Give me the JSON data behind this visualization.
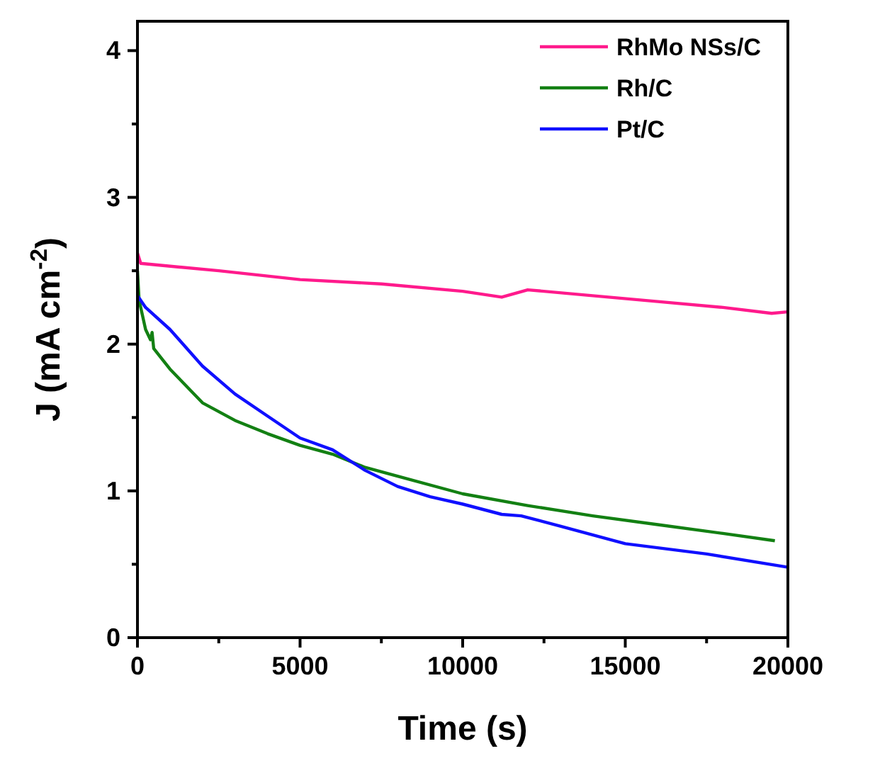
{
  "chart_data": {
    "type": "line",
    "xlabel": "Time (s)",
    "ylabel": "J (mA cm$^{-2}$)",
    "xlim": [
      0,
      20000
    ],
    "ylim": [
      0,
      4.2
    ],
    "xticks": [
      0,
      {
        "value": 2500,
        "label": null
      },
      5000,
      {
        "value": 7500,
        "label": null
      },
      10000,
      {
        "value": 12500,
        "label": null
      },
      15000,
      {
        "value": 17500,
        "label": null
      },
      20000
    ],
    "yticks": [
      0,
      {
        "value": 0.5,
        "label": null
      },
      1,
      {
        "value": 1.5,
        "label": null
      },
      2,
      {
        "value": 2.5,
        "label": null
      },
      3,
      {
        "value": 3.5,
        "label": null
      },
      4
    ],
    "grid": false,
    "legend": "top right",
    "marker": "none",
    "line_style": "solid",
    "series": [
      {
        "name": "RhMo NSs/C",
        "color": "#ff1a8c",
        "x": [
          0,
          100,
          2500,
          5000,
          7500,
          10000,
          11200,
          12000,
          14000,
          16000,
          18000,
          19500,
          20000
        ],
        "values": [
          2.62,
          2.55,
          2.5,
          2.44,
          2.41,
          2.36,
          2.32,
          2.37,
          2.33,
          2.29,
          2.25,
          2.21,
          2.22
        ]
      },
      {
        "name": "Rh/C",
        "color": "#138013",
        "x": [
          0,
          50,
          250,
          400,
          450,
          500,
          1000,
          2000,
          3000,
          4000,
          5000,
          6000,
          7000,
          8000,
          10000,
          12000,
          14000,
          16000,
          18000,
          19600
        ],
        "values": [
          2.5,
          2.3,
          2.1,
          2.03,
          2.08,
          1.97,
          1.83,
          1.6,
          1.48,
          1.39,
          1.31,
          1.25,
          1.16,
          1.1,
          0.98,
          0.9,
          0.83,
          0.77,
          0.71,
          0.66
        ]
      },
      {
        "name": "Pt/C",
        "color": "#1010ff",
        "x": [
          0,
          250,
          1000,
          2000,
          3000,
          4000,
          5000,
          6000,
          7000,
          8000,
          9000,
          10000,
          11200,
          11800,
          13000,
          15000,
          17500,
          20000
        ],
        "values": [
          2.33,
          2.25,
          2.1,
          1.85,
          1.66,
          1.51,
          1.36,
          1.28,
          1.14,
          1.03,
          0.96,
          0.91,
          0.84,
          0.83,
          0.76,
          0.64,
          0.57,
          0.48
        ]
      }
    ]
  }
}
